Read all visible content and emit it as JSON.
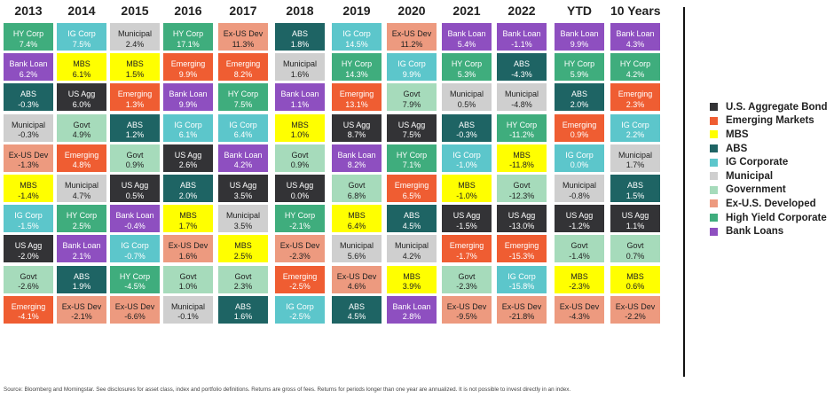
{
  "chart_data": {
    "type": "table",
    "title": "",
    "columns": [
      "2013",
      "2014",
      "2015",
      "2016",
      "2017",
      "2018",
      "2019",
      "2020",
      "2021",
      "2022",
      "YTD",
      "10 Years"
    ],
    "colors": {
      "HY Corp": "#3fad7d",
      "IG Corp": "#5cc6cb",
      "Bank Loan": "#8e4fc0",
      "ABS": "#1e6464",
      "Municipal": "#cfcfcf",
      "Ex-US Dev": "#ed9a7f",
      "MBS": "#ffff00",
      "US Agg": "#333336",
      "Govt": "#a6dbbb",
      "Emerging": "#ef5d32"
    },
    "text_colors": {
      "HY Corp": "#ffffff",
      "IG Corp": "#ffffff",
      "Bank Loan": "#ffffff",
      "ABS": "#ffffff",
      "Municipal": "#222222",
      "Ex-US Dev": "#222222",
      "MBS": "#222222",
      "US Agg": "#ffffff",
      "Govt": "#222222",
      "Emerging": "#ffffff"
    },
    "cells": [
      [
        {
          "name": "HY Corp",
          "value": "7.4%"
        },
        {
          "name": "Bank Loan",
          "value": "6.2%"
        },
        {
          "name": "ABS",
          "value": "-0.3%"
        },
        {
          "name": "Municipal",
          "value": "-0.3%"
        },
        {
          "name": "Ex-US Dev",
          "value": "-1.3%"
        },
        {
          "name": "MBS",
          "value": "-1.4%"
        },
        {
          "name": "IG Corp",
          "value": "-1.5%"
        },
        {
          "name": "US Agg",
          "value": "-2.0%"
        },
        {
          "name": "Govt",
          "value": "-2.6%"
        },
        {
          "name": "Emerging",
          "value": "-4.1%"
        }
      ],
      [
        {
          "name": "IG Corp",
          "value": "7.5%"
        },
        {
          "name": "MBS",
          "value": "6.1%"
        },
        {
          "name": "US Agg",
          "value": "6.0%"
        },
        {
          "name": "Govt",
          "value": "4.9%"
        },
        {
          "name": "Emerging",
          "value": "4.8%"
        },
        {
          "name": "Municipal",
          "value": "4.7%"
        },
        {
          "name": "HY Corp",
          "value": "2.5%"
        },
        {
          "name": "Bank Loan",
          "value": "2.1%"
        },
        {
          "name": "ABS",
          "value": "1.9%"
        },
        {
          "name": "Ex-US Dev",
          "value": "-2.1%"
        }
      ],
      [
        {
          "name": "Municipal",
          "value": "2.4%"
        },
        {
          "name": "MBS",
          "value": "1.5%"
        },
        {
          "name": "Emerging",
          "value": "1.3%"
        },
        {
          "name": "ABS",
          "value": "1.2%"
        },
        {
          "name": "Govt",
          "value": "0.9%"
        },
        {
          "name": "US Agg",
          "value": "0.5%"
        },
        {
          "name": "Bank Loan",
          "value": "-0.4%"
        },
        {
          "name": "IG Corp",
          "value": "-0.7%"
        },
        {
          "name": "HY Corp",
          "value": "-4.5%"
        },
        {
          "name": "Ex-US Dev",
          "value": "-6.6%"
        }
      ],
      [
        {
          "name": "HY Corp",
          "value": "17.1%"
        },
        {
          "name": "Emerging",
          "value": "9.9%"
        },
        {
          "name": "Bank Loan",
          "value": "9.9%"
        },
        {
          "name": "IG Corp",
          "value": "6.1%"
        },
        {
          "name": "US Agg",
          "value": "2.6%"
        },
        {
          "name": "ABS",
          "value": "2.0%"
        },
        {
          "name": "MBS",
          "value": "1.7%"
        },
        {
          "name": "Ex-US Dev",
          "value": "1.6%"
        },
        {
          "name": "Govt",
          "value": "1.0%"
        },
        {
          "name": "Municipal",
          "value": "-0.1%"
        }
      ],
      [
        {
          "name": "Ex-US Dev",
          "value": "11.3%"
        },
        {
          "name": "Emerging",
          "value": "8.2%"
        },
        {
          "name": "HY Corp",
          "value": "7.5%"
        },
        {
          "name": "IG Corp",
          "value": "6.4%"
        },
        {
          "name": "Bank Loan",
          "value": "4.2%"
        },
        {
          "name": "US Agg",
          "value": "3.5%"
        },
        {
          "name": "Municipal",
          "value": "3.5%"
        },
        {
          "name": "MBS",
          "value": "2.5%"
        },
        {
          "name": "Govt",
          "value": "2.3%"
        },
        {
          "name": "ABS",
          "value": "1.6%"
        }
      ],
      [
        {
          "name": "ABS",
          "value": "1.8%"
        },
        {
          "name": "Municipal",
          "value": "1.6%"
        },
        {
          "name": "Bank Loan",
          "value": "1.1%"
        },
        {
          "name": "MBS",
          "value": "1.0%"
        },
        {
          "name": "Govt",
          "value": "0.9%"
        },
        {
          "name": "US Agg",
          "value": "0.0%"
        },
        {
          "name": "HY Corp",
          "value": "-2.1%"
        },
        {
          "name": "Ex-US Dev",
          "value": "-2.3%"
        },
        {
          "name": "Emerging",
          "value": "-2.5%"
        },
        {
          "name": "IG Corp",
          "value": "-2.5%"
        }
      ],
      [
        {
          "name": "IG Corp",
          "value": "14.5%"
        },
        {
          "name": "HY Corp",
          "value": "14.3%"
        },
        {
          "name": "Emerging",
          "value": "13.1%"
        },
        {
          "name": "US Agg",
          "value": "8.7%"
        },
        {
          "name": "Bank Loan",
          "value": "8.2%"
        },
        {
          "name": "Govt",
          "value": "6.8%"
        },
        {
          "name": "MBS",
          "value": "6.4%"
        },
        {
          "name": "Municipal",
          "value": "5.6%"
        },
        {
          "name": "Ex-US Dev",
          "value": "4.6%"
        },
        {
          "name": "ABS",
          "value": "4.5%"
        }
      ],
      [
        {
          "name": "Ex-US Dev",
          "value": "11.2%"
        },
        {
          "name": "IG Corp",
          "value": "9.9%"
        },
        {
          "name": "Govt",
          "value": "7.9%"
        },
        {
          "name": "US Agg",
          "value": "7.5%"
        },
        {
          "name": "HY Corp",
          "value": "7.1%"
        },
        {
          "name": "Emerging",
          "value": "6.5%"
        },
        {
          "name": "ABS",
          "value": "4.5%"
        },
        {
          "name": "Municipal",
          "value": "4.2%"
        },
        {
          "name": "MBS",
          "value": "3.9%"
        },
        {
          "name": "Bank Loan",
          "value": "2.8%"
        }
      ],
      [
        {
          "name": "Bank Loan",
          "value": "5.4%"
        },
        {
          "name": "HY Corp",
          "value": "5.3%"
        },
        {
          "name": "Municipal",
          "value": "0.5%"
        },
        {
          "name": "ABS",
          "value": "-0.3%"
        },
        {
          "name": "IG Corp",
          "value": "-1.0%"
        },
        {
          "name": "MBS",
          "value": "-1.0%"
        },
        {
          "name": "US Agg",
          "value": "-1.5%"
        },
        {
          "name": "Emerging",
          "value": "-1.7%"
        },
        {
          "name": "Govt",
          "value": "-2.3%"
        },
        {
          "name": "Ex-US Dev",
          "value": "-9.5%"
        }
      ],
      [
        {
          "name": "Bank Loan",
          "value": "-1.1%"
        },
        {
          "name": "ABS",
          "value": "-4.3%"
        },
        {
          "name": "Municipal",
          "value": "-4.8%"
        },
        {
          "name": "HY Corp",
          "value": "-11.2%"
        },
        {
          "name": "MBS",
          "value": "-11.8%"
        },
        {
          "name": "Govt",
          "value": "-12.3%"
        },
        {
          "name": "US Agg",
          "value": "-13.0%"
        },
        {
          "name": "Emerging",
          "value": "-15.3%"
        },
        {
          "name": "IG Corp",
          "value": "-15.8%"
        },
        {
          "name": "Ex-US Dev",
          "value": "-21.8%"
        }
      ],
      [
        {
          "name": "Bank Loan",
          "value": "9.9%"
        },
        {
          "name": "HY Corp",
          "value": "5.9%"
        },
        {
          "name": "ABS",
          "value": "2.0%"
        },
        {
          "name": "Emerging",
          "value": "0.9%"
        },
        {
          "name": "IG Corp",
          "value": "0.0%"
        },
        {
          "name": "Municipal",
          "value": "-0.8%"
        },
        {
          "name": "US Agg",
          "value": "-1.2%"
        },
        {
          "name": "Govt",
          "value": "-1.4%"
        },
        {
          "name": "MBS",
          "value": "-2.3%"
        },
        {
          "name": "Ex-US Dev",
          "value": "-4.3%"
        }
      ],
      [
        {
          "name": "Bank Loan",
          "value": "4.3%"
        },
        {
          "name": "HY Corp",
          "value": "4.2%"
        },
        {
          "name": "Emerging",
          "value": "2.3%"
        },
        {
          "name": "IG Corp",
          "value": "2.2%"
        },
        {
          "name": "Municipal",
          "value": "1.7%"
        },
        {
          "name": "ABS",
          "value": "1.5%"
        },
        {
          "name": "US Agg",
          "value": "1.1%"
        },
        {
          "name": "Govt",
          "value": "0.7%"
        },
        {
          "name": "MBS",
          "value": "0.6%"
        },
        {
          "name": "Ex-US Dev",
          "value": "-2.2%"
        }
      ]
    ],
    "legend": [
      {
        "label": "U.S. Aggregate Bond",
        "color": "#333336"
      },
      {
        "label": "Emerging Markets",
        "color": "#ef5d32"
      },
      {
        "label": "MBS",
        "color": "#ffff00"
      },
      {
        "label": "ABS",
        "color": "#1e6464"
      },
      {
        "label": "IG Corporate",
        "color": "#5cc6cb"
      },
      {
        "label": "Municipal",
        "color": "#cfcfcf"
      },
      {
        "label": "Government",
        "color": "#a6dbbb"
      },
      {
        "label": "Ex-U.S. Developed",
        "color": "#ed9a7f"
      },
      {
        "label": "High Yield Corporate",
        "color": "#3fad7d"
      },
      {
        "label": "Bank Loans",
        "color": "#8e4fc0"
      }
    ],
    "legend_position": "right"
  },
  "footnote": "Source: Bloomberg and Morningstar. See disclosures for asset class, index and portfolio definitions. Returns are gross of fees. Returns for periods longer than one year are annualized. It is not possible to invest directly in an index."
}
